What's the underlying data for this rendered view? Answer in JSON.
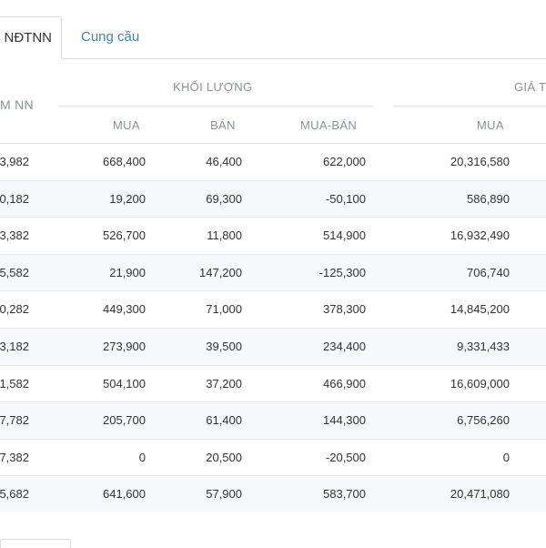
{
  "tabs": {
    "active_label": "NĐTNN",
    "other_label": "Cung cầu"
  },
  "header": {
    "first_col": "M NN",
    "group_volume": "KHỐI LƯỢNG",
    "group_value": "GIÁ T",
    "buy": "MUA",
    "sell": "BÁN",
    "net": "MUA-BÁN",
    "value_buy": "MUA"
  },
  "rows": [
    [
      "3,982",
      "668,400",
      "46,400",
      "622,000",
      "20,316,580"
    ],
    [
      "0,182",
      "19,200",
      "69,300",
      "-50,100",
      "586,890"
    ],
    [
      "3,382",
      "526,700",
      "11,800",
      "514,900",
      "16,932,490"
    ],
    [
      "5,582",
      "21,900",
      "147,200",
      "-125,300",
      "706,740"
    ],
    [
      "0,282",
      "449,300",
      "71,000",
      "378,300",
      "14,845,200"
    ],
    [
      "3,182",
      "273,900",
      "39,500",
      "234,400",
      "9,331,433"
    ],
    [
      "1,582",
      "504,100",
      "37,200",
      "466,900",
      "16,609,000"
    ],
    [
      "7,782",
      "205,700",
      "61,400",
      "144,300",
      "6,756,260"
    ],
    [
      "7,382",
      "0",
      "20,500",
      "-20,500",
      "0"
    ],
    [
      "5,682",
      "641,600",
      "57,900",
      "583,700",
      "20,471,080"
    ]
  ]
}
